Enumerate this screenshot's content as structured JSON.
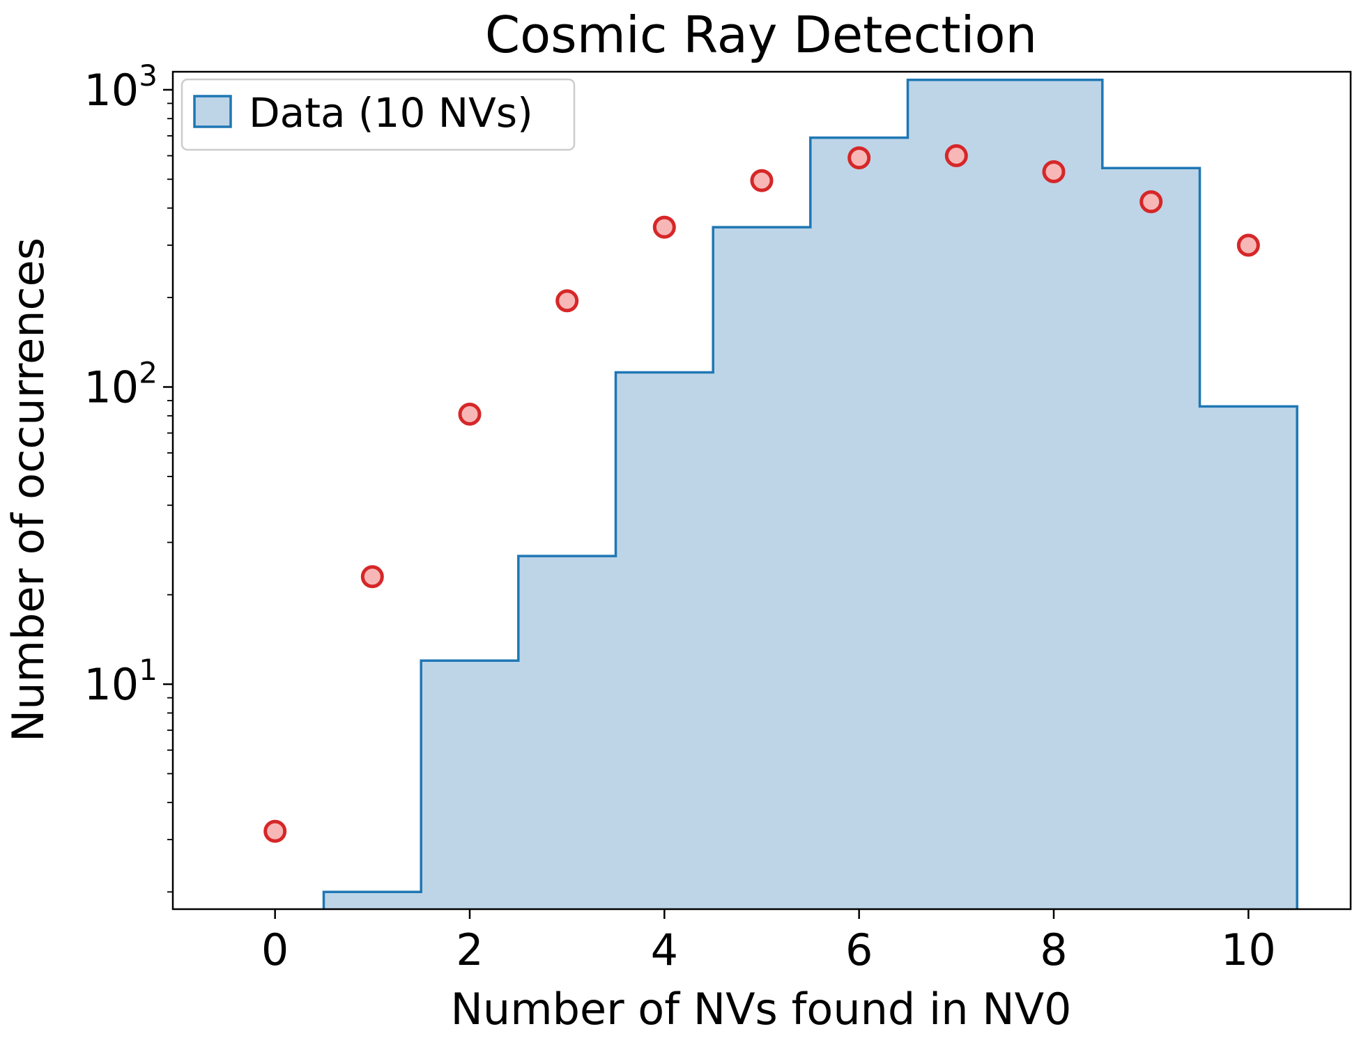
{
  "chart_data": {
    "type": "bar",
    "title": "Cosmic Ray Detection",
    "xlabel": "Number of NVs found in NV0",
    "ylabel": "Number of occurrences",
    "yscale": "log",
    "xlim": [
      -1.05,
      11.05
    ],
    "ylim": [
      1.75,
      1150
    ],
    "grid": false,
    "legend": {
      "position": "top-left",
      "entries": [
        "Data (10 NVs)"
      ]
    },
    "x_ticks": [
      0,
      2,
      4,
      6,
      8,
      10
    ],
    "x_tick_labels": [
      "0",
      "2",
      "4",
      "6",
      "8",
      "10"
    ],
    "y_major_ticks": [
      10,
      100,
      1000
    ],
    "histogram": {
      "name": "Data (10 NVs)",
      "bins": [
        {
          "x0": 0.5,
          "x1": 1.5,
          "value": 2
        },
        {
          "x0": 1.5,
          "x1": 2.5,
          "value": 12
        },
        {
          "x0": 2.5,
          "x1": 3.5,
          "value": 27
        },
        {
          "x0": 3.5,
          "x1": 4.5,
          "value": 112
        },
        {
          "x0": 4.5,
          "x1": 5.5,
          "value": 345
        },
        {
          "x0": 5.5,
          "x1": 6.5,
          "value": 690
        },
        {
          "x0": 6.5,
          "x1": 8.5,
          "value": 1080
        },
        {
          "x0": 8.5,
          "x1": 9.5,
          "value": 545
        },
        {
          "x0": 9.5,
          "x1": 10.5,
          "value": 86
        }
      ],
      "fill_color": "#bed5e8",
      "edge_color": "#1f77b4"
    },
    "points": {
      "x": [
        0,
        1,
        2,
        3,
        4,
        5,
        6,
        7,
        8,
        9,
        10
      ],
      "y": [
        3.2,
        23,
        81,
        195,
        345,
        495,
        590,
        600,
        530,
        420,
        300
      ],
      "face_color": "#f7b7b7",
      "edge_color": "#d62728"
    }
  }
}
